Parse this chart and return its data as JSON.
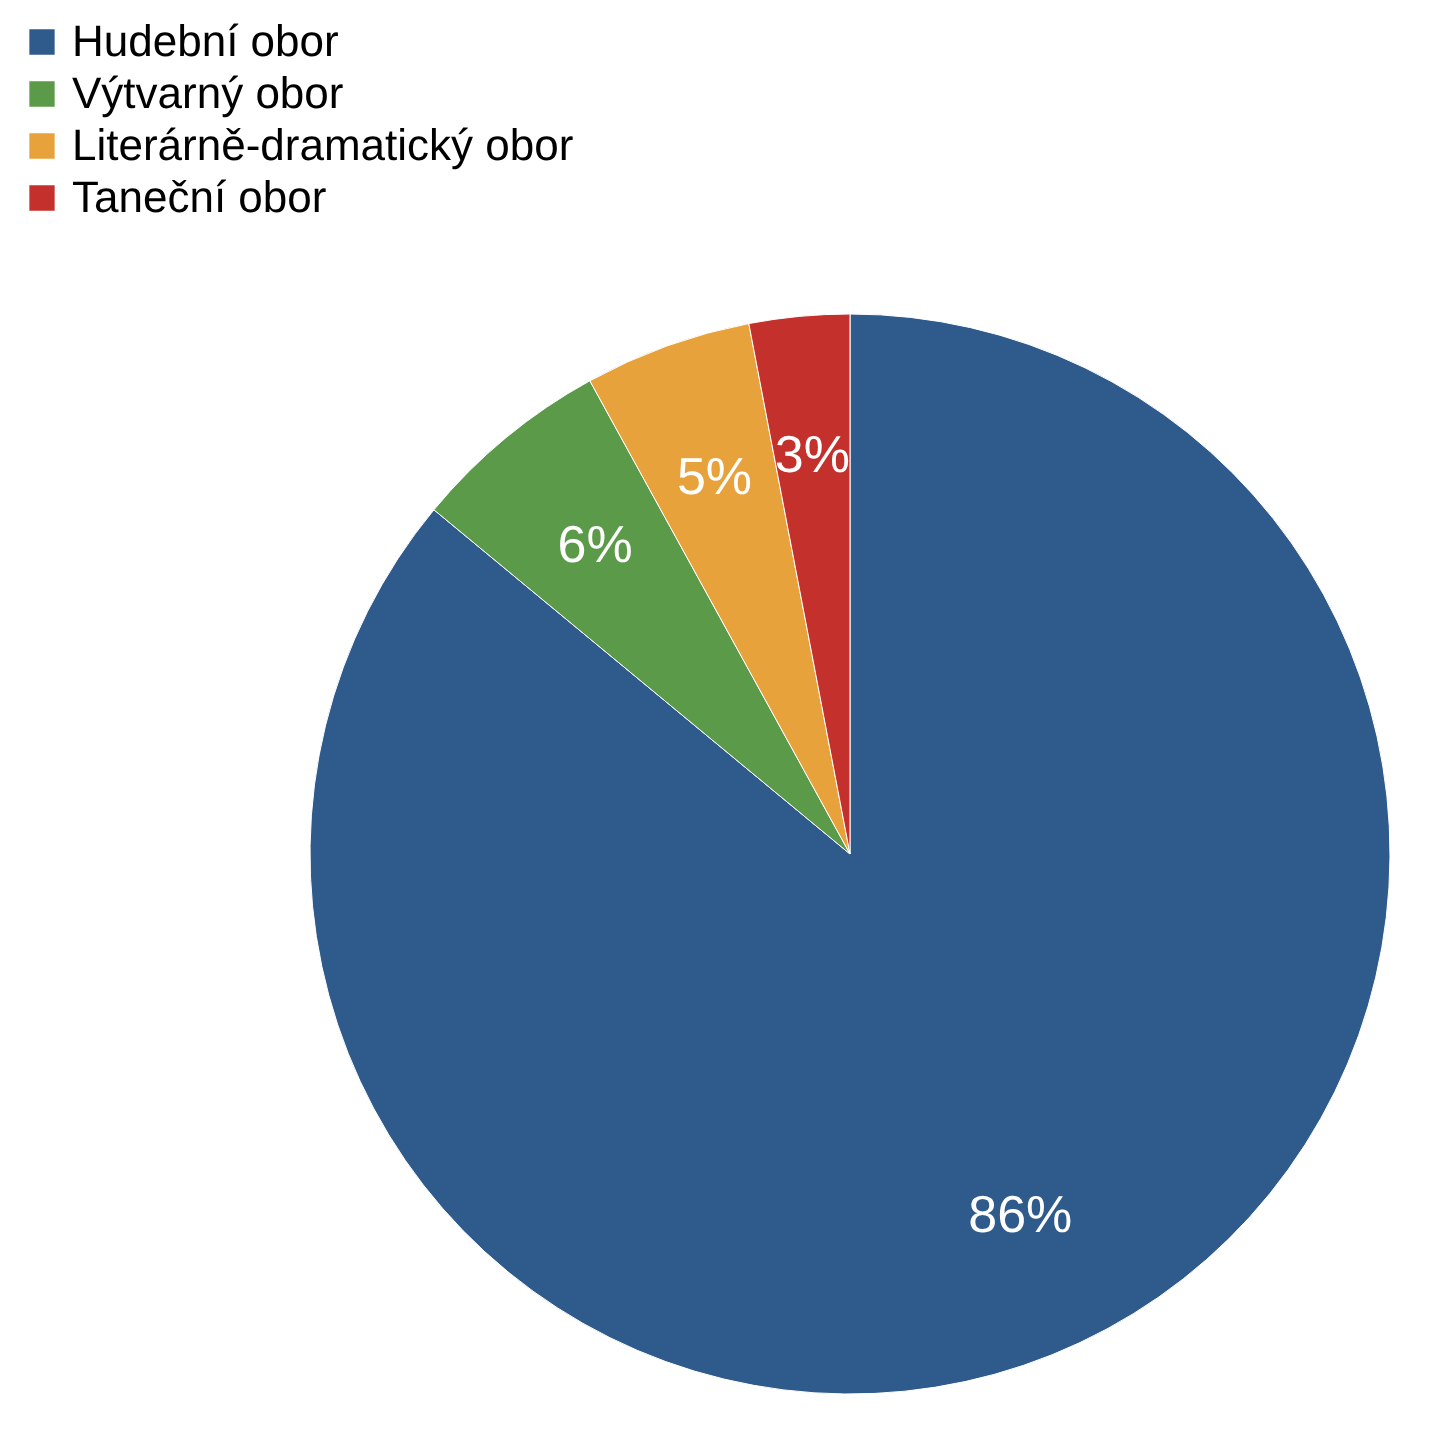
{
  "chart_data": {
    "type": "pie",
    "categories": [
      "Hudební obor",
      "Výtvarný obor",
      "Literárně-dramatický obor",
      "Taneční obor"
    ],
    "values": [
      86,
      6,
      5,
      3
    ],
    "colors": [
      "#2f5a8c",
      "#5b9a49",
      "#e8a23c",
      "#c4302b"
    ],
    "value_labels": [
      "86%",
      "6%",
      "5%",
      "3%"
    ],
    "legend": "top left"
  }
}
